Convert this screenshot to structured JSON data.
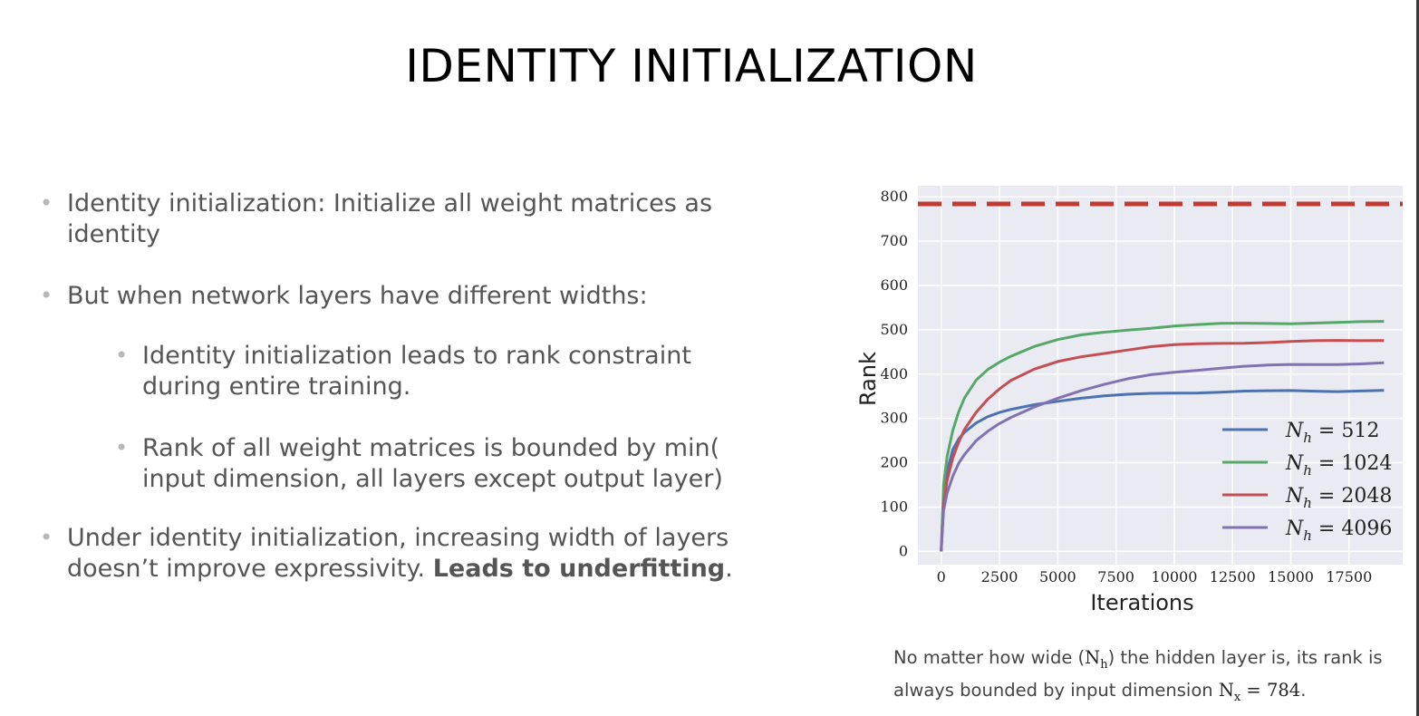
{
  "slide": {
    "title": "IDENTITY INITIALIZATION"
  },
  "bullets": {
    "b1": "Identity initialization: Initialize all weight matrices as identity",
    "b2": "But when network layers have different widths:",
    "b3": "Identity initialization leads to rank constraint during entire training.",
    "b4": "Rank of all weight matrices is bounded by min( input dimension, all layers except output layer)",
    "b5_prefix": "Under identity initialization, increasing width of layers doesn’t improve expressivity. ",
    "b5_bold": "Leads to underfitting",
    "b5_suffix": "."
  },
  "caption": {
    "part1": "No matter how wide (",
    "nh": "N",
    "nh_sub": "h",
    "part2": ") the hidden layer is, its rank is always bounded by input dimension ",
    "nx": "N",
    "nx_sub": "x",
    "nx_value": " = 784",
    "end": "."
  },
  "colors": {
    "plot_bg": "#EAEAF2",
    "grid": "#ffffff",
    "bound_line": "#C03A30",
    "n512": "#4C72B0",
    "n1024": "#55A868",
    "n2048": "#C44E52",
    "n4096": "#8172B2"
  },
  "chart_data": {
    "type": "line",
    "xlabel": "Iterations",
    "ylabel": "Rank",
    "xlim": [
      -1000,
      19800
    ],
    "ylim": [
      -30,
      825
    ],
    "xticks": [
      0,
      2500,
      5000,
      7500,
      10000,
      12500,
      15000,
      17500
    ],
    "yticks": [
      0,
      100,
      200,
      300,
      400,
      500,
      600,
      700,
      800
    ],
    "grid": true,
    "legend_position": "lower-right",
    "hline": {
      "y": 784,
      "style": "dashed",
      "color": "#C03A30"
    },
    "x": [
      0,
      100,
      250,
      500,
      750,
      1000,
      1500,
      2000,
      2500,
      3000,
      4000,
      5000,
      6000,
      7000,
      8000,
      9000,
      10000,
      11000,
      12000,
      13000,
      14000,
      15000,
      16000,
      17000,
      18000,
      19000
    ],
    "series": [
      {
        "name": "N_h = 512",
        "label_base": "N",
        "label_sub": "h",
        "label_value": " = 512",
        "color": "#4C72B0",
        "values": [
          0,
          125,
          180,
          230,
          255,
          270,
          290,
          303,
          312,
          320,
          332,
          340,
          346,
          350,
          353,
          356,
          358,
          359,
          360,
          361,
          361,
          362,
          362,
          362,
          363,
          363
        ]
      },
      {
        "name": "N_h = 1024",
        "label_base": "N",
        "label_sub": "h",
        "label_value": " = 1024",
        "color": "#55A868",
        "values": [
          0,
          150,
          215,
          275,
          315,
          345,
          385,
          410,
          428,
          442,
          463,
          477,
          487,
          494,
          500,
          505,
          509,
          511,
          513,
          514,
          515,
          515,
          516,
          516,
          517,
          518
        ]
      },
      {
        "name": "N_h = 2048",
        "label_base": "N",
        "label_sub": "h",
        "label_value": " = 2048",
        "color": "#C44E52",
        "values": [
          0,
          105,
          160,
          210,
          245,
          275,
          315,
          345,
          367,
          385,
          410,
          428,
          440,
          448,
          455,
          461,
          465,
          468,
          470,
          471,
          472,
          473,
          474,
          475,
          476,
          477
        ]
      },
      {
        "name": "N_h = 4096",
        "label_base": "N",
        "label_sub": "h",
        "label_value": " = 4096",
        "color": "#8172B2",
        "values": [
          0,
          90,
          130,
          170,
          200,
          220,
          250,
          270,
          287,
          302,
          327,
          347,
          363,
          376,
          388,
          398,
          405,
          410,
          414,
          417,
          419,
          421,
          422,
          423,
          424,
          425
        ]
      }
    ]
  }
}
